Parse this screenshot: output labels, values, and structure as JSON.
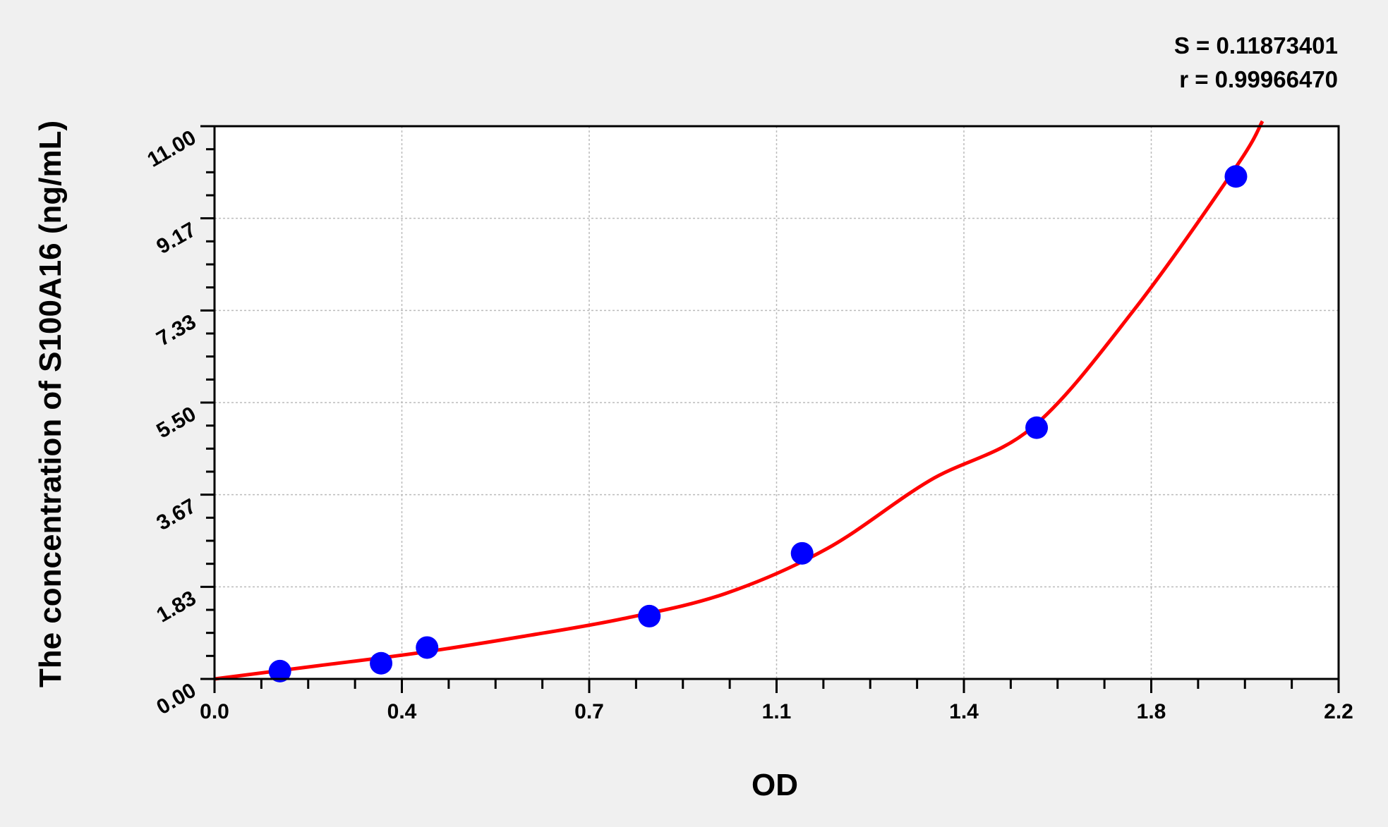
{
  "chart_data": {
    "type": "scatter",
    "title": "",
    "xlabel": "OD",
    "ylabel": "The concentration of S100A16 (ng/mL)",
    "xlim": [
      0,
      2.2
    ],
    "ylim": [
      0,
      11
    ],
    "x_tick_labels": [
      "0.0",
      "0.4",
      "0.7",
      "1.1",
      "1.4",
      "1.8",
      "2.2"
    ],
    "y_tick_labels": [
      "0.00",
      "1.83",
      "3.67",
      "5.50",
      "7.33",
      "9.17",
      "11.00"
    ],
    "grid": true,
    "annotations": [
      "S = 0.11873401",
      "r = 0.99966470"
    ],
    "points": {
      "x": [
        0.128,
        0.326,
        0.416,
        0.851,
        1.15,
        1.609,
        1.999
      ],
      "y": [
        0.156,
        0.3125,
        0.625,
        1.25,
        2.5,
        5,
        10
      ],
      "color": "#0000ff"
    },
    "fit_curve": {
      "x": [
        0,
        0.2,
        0.4,
        0.6,
        0.8,
        1.0,
        1.2,
        1.4,
        1.6,
        1.8,
        2.0,
        2.051
      ],
      "y": [
        0,
        0.26,
        0.52,
        0.84,
        1.2,
        1.7,
        2.6,
        3.95,
        5.0,
        7.35,
        10.2,
        11.1
      ],
      "color": "#ff0000"
    }
  }
}
